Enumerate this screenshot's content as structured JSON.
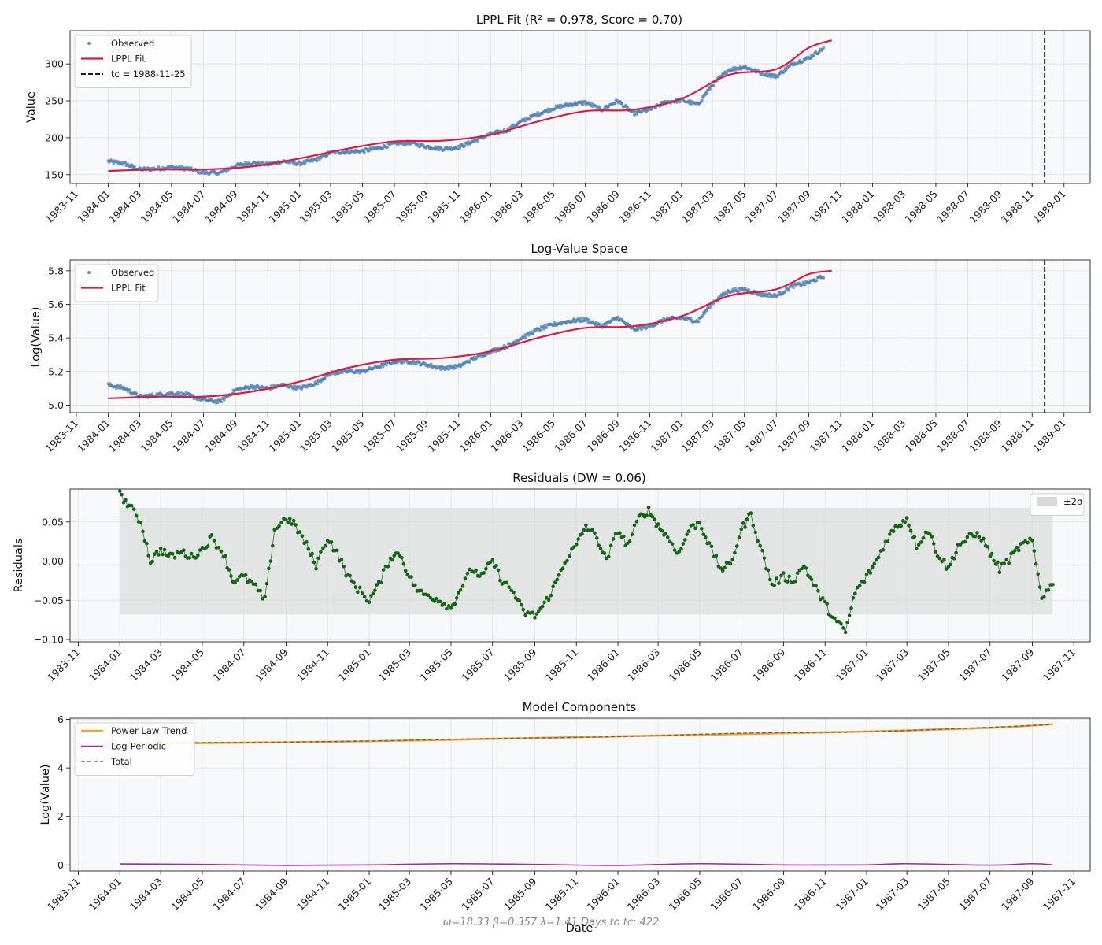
{
  "chart_data": [
    {
      "type": "scatter",
      "panel": "price",
      "title": "LPPL Fit (R² = 0.978, Score = 0.70)",
      "xlabel": "",
      "ylabel": "Value",
      "ylim": [
        138,
        345
      ],
      "yticks": [
        150,
        200,
        250,
        300
      ],
      "xlim": [
        "1983-10-20",
        "1989-02-20"
      ],
      "xticks": [
        "1983-11",
        "1984-01",
        "1984-03",
        "1984-05",
        "1984-07",
        "1984-09",
        "1984-11",
        "1985-01",
        "1985-03",
        "1985-05",
        "1985-07",
        "1985-09",
        "1985-11",
        "1986-01",
        "1986-03",
        "1986-05",
        "1986-07",
        "1986-09",
        "1986-11",
        "1987-01",
        "1987-03",
        "1987-05",
        "1987-07",
        "1987-09",
        "1987-11",
        "1988-01",
        "1988-03",
        "1988-05",
        "1988-07",
        "1988-09",
        "1988-11",
        "1989-01"
      ],
      "tc_date": "1988-11-25",
      "legend": {
        "position": "top-left",
        "entries": [
          "Observed",
          "LPPL Fit",
          "tc = 1988-11-25"
        ]
      },
      "series": [
        {
          "name": "Observed",
          "style": "dots",
          "color": "#4f81b4",
          "x": [
            "1984-01-01",
            "1984-02-01",
            "1984-03-01",
            "1984-04-01",
            "1984-05-01",
            "1984-06-01",
            "1984-07-01",
            "1984-08-01",
            "1984-09-01",
            "1984-10-01",
            "1984-11-01",
            "1984-12-01",
            "1985-01-01",
            "1985-02-01",
            "1985-03-01",
            "1985-04-01",
            "1985-05-01",
            "1985-06-01",
            "1985-07-01",
            "1985-08-01",
            "1985-09-01",
            "1985-10-01",
            "1985-11-01",
            "1985-12-01",
            "1986-01-01",
            "1986-02-01",
            "1986-03-01",
            "1986-04-01",
            "1986-05-01",
            "1986-06-01",
            "1986-07-01",
            "1986-08-01",
            "1986-09-01",
            "1986-10-01",
            "1986-11-01",
            "1986-12-01",
            "1987-01-01",
            "1987-02-01",
            "1987-03-01",
            "1987-04-01",
            "1987-05-01",
            "1987-06-01",
            "1987-07-01",
            "1987-08-01",
            "1987-09-01",
            "1987-10-01"
          ],
          "values": [
            168,
            165,
            157,
            158,
            160,
            158,
            153,
            152,
            162,
            166,
            164,
            168,
            165,
            170,
            180,
            181,
            182,
            186,
            192,
            193,
            188,
            185,
            187,
            196,
            205,
            210,
            222,
            232,
            240,
            245,
            248,
            238,
            250,
            233,
            238,
            248,
            251,
            245,
            272,
            292,
            296,
            288,
            283,
            300,
            308,
            322
          ]
        },
        {
          "name": "LPPL Fit",
          "style": "line",
          "color": "#d81c44",
          "x": [
            "1984-01-01",
            "1984-04-01",
            "1984-07-01",
            "1984-10-01",
            "1985-01-01",
            "1985-04-01",
            "1985-07-01",
            "1985-10-01",
            "1986-01-01",
            "1986-04-01",
            "1986-07-01",
            "1986-10-01",
            "1987-01-01",
            "1987-04-01",
            "1987-07-01",
            "1987-09-01",
            "1987-10-15"
          ],
          "values": [
            155,
            157,
            157,
            161,
            172,
            185,
            195,
            196,
            204,
            222,
            236,
            238,
            253,
            285,
            293,
            322,
            332
          ]
        }
      ]
    },
    {
      "type": "scatter",
      "panel": "log",
      "title": "Log-Value Space",
      "xlabel": "",
      "ylabel": "Log(Value)",
      "ylim": [
        4.955,
        5.865
      ],
      "yticks": [
        "5.0",
        "5.2",
        "5.4",
        "5.6",
        "5.8"
      ],
      "xlim": [
        "1983-10-20",
        "1989-02-20"
      ],
      "tc_date": "1988-11-25",
      "legend": {
        "position": "top-left",
        "entries": [
          "Observed",
          "LPPL Fit"
        ]
      },
      "series": [
        {
          "name": "Observed",
          "style": "dots",
          "color": "#4f81b4",
          "x": [
            "1984-01-01",
            "1984-02-01",
            "1984-03-01",
            "1984-04-01",
            "1984-05-01",
            "1984-06-01",
            "1984-07-01",
            "1984-08-01",
            "1984-09-01",
            "1984-10-01",
            "1984-11-01",
            "1984-12-01",
            "1985-01-01",
            "1985-02-01",
            "1985-03-01",
            "1985-04-01",
            "1985-05-01",
            "1985-06-01",
            "1985-07-01",
            "1985-08-01",
            "1985-09-01",
            "1985-10-01",
            "1985-11-01",
            "1985-12-01",
            "1986-01-01",
            "1986-02-01",
            "1986-03-01",
            "1986-04-01",
            "1986-05-01",
            "1986-06-01",
            "1986-07-01",
            "1986-08-01",
            "1986-09-01",
            "1986-10-01",
            "1986-11-01",
            "1986-12-01",
            "1987-01-01",
            "1987-02-01",
            "1987-03-01",
            "1987-04-01",
            "1987-05-01",
            "1987-06-01",
            "1987-07-01",
            "1987-08-01",
            "1987-09-01",
            "1987-10-01"
          ],
          "values": [
            5.12,
            5.1,
            5.05,
            5.06,
            5.07,
            5.06,
            5.03,
            5.02,
            5.09,
            5.11,
            5.1,
            5.12,
            5.1,
            5.13,
            5.19,
            5.2,
            5.2,
            5.23,
            5.26,
            5.26,
            5.24,
            5.22,
            5.23,
            5.28,
            5.32,
            5.35,
            5.4,
            5.45,
            5.48,
            5.5,
            5.51,
            5.47,
            5.52,
            5.45,
            5.47,
            5.51,
            5.52,
            5.5,
            5.61,
            5.68,
            5.69,
            5.66,
            5.65,
            5.71,
            5.73,
            5.77
          ]
        },
        {
          "name": "LPPL Fit",
          "style": "line",
          "color": "#d81c44",
          "x": [
            "1984-01-01",
            "1984-04-01",
            "1984-07-01",
            "1984-10-01",
            "1985-01-01",
            "1985-04-01",
            "1985-07-01",
            "1985-10-01",
            "1986-01-01",
            "1986-04-01",
            "1986-07-01",
            "1986-10-01",
            "1987-01-01",
            "1987-04-01",
            "1987-07-01",
            "1987-09-01",
            "1987-10-15"
          ],
          "values": [
            5.04,
            5.05,
            5.05,
            5.08,
            5.14,
            5.22,
            5.27,
            5.28,
            5.32,
            5.4,
            5.46,
            5.47,
            5.53,
            5.65,
            5.69,
            5.78,
            5.8
          ]
        }
      ]
    },
    {
      "type": "scatter",
      "panel": "residuals",
      "title": "Residuals (DW = 0.06)",
      "xlabel": "",
      "ylabel": "Residuals",
      "ylim": [
        -0.103,
        0.092
      ],
      "yticks": [
        "−0.10",
        "−0.05",
        "0.00",
        "0.05"
      ],
      "xlim": [
        "1983-10-20",
        "1987-11-25"
      ],
      "xticks": [
        "1983-11",
        "1984-01",
        "1984-03",
        "1984-05",
        "1984-07",
        "1984-09",
        "1984-11",
        "1985-01",
        "1985-03",
        "1985-05",
        "1985-07",
        "1985-09",
        "1985-11",
        "1986-01",
        "1986-03",
        "1986-05",
        "1986-07",
        "1986-09",
        "1986-11",
        "1987-01",
        "1987-03",
        "1987-05",
        "1987-07",
        "1987-09",
        "1987-11"
      ],
      "band": {
        "label": "±2σ",
        "lower": -0.068,
        "upper": 0.068
      },
      "legend": {
        "position": "top-right",
        "entries": [
          "±2σ"
        ]
      },
      "series": [
        {
          "name": "Residuals",
          "style": "line+dots",
          "color": "#146414",
          "x": [
            "1984-01-01",
            "1984-01-15",
            "1984-02-01",
            "1984-02-15",
            "1984-03-01",
            "1984-03-15",
            "1984-04-01",
            "1984-04-15",
            "1984-05-01",
            "1984-05-15",
            "1984-06-01",
            "1984-06-15",
            "1984-07-01",
            "1984-07-15",
            "1984-08-01",
            "1984-08-15",
            "1984-09-01",
            "1984-09-15",
            "1984-10-01",
            "1984-10-15",
            "1984-11-01",
            "1984-11-15",
            "1984-12-01",
            "1984-12-15",
            "1985-01-01",
            "1985-01-15",
            "1985-02-01",
            "1985-02-15",
            "1985-03-01",
            "1985-03-15",
            "1985-04-01",
            "1985-04-15",
            "1985-05-01",
            "1985-05-15",
            "1985-06-01",
            "1985-06-15",
            "1985-07-01",
            "1985-07-15",
            "1985-08-01",
            "1985-08-15",
            "1985-09-01",
            "1985-09-15",
            "1985-10-01",
            "1985-10-15",
            "1985-11-01",
            "1985-11-15",
            "1985-12-01",
            "1985-12-15",
            "1986-01-01",
            "1986-01-15",
            "1986-02-01",
            "1986-02-15",
            "1986-03-01",
            "1986-03-15",
            "1986-04-01",
            "1986-04-15",
            "1986-05-01",
            "1986-05-15",
            "1986-06-01",
            "1986-06-15",
            "1986-07-01",
            "1986-07-15",
            "1986-08-01",
            "1986-08-15",
            "1986-09-01",
            "1986-09-15",
            "1986-10-01",
            "1986-10-15",
            "1986-11-01",
            "1986-11-15",
            "1986-12-01",
            "1986-12-15",
            "1987-01-01",
            "1987-01-15",
            "1987-02-01",
            "1987-02-15",
            "1987-03-01",
            "1987-03-15",
            "1987-04-01",
            "1987-04-15",
            "1987-05-01",
            "1987-05-15",
            "1987-06-01",
            "1987-06-15",
            "1987-07-01",
            "1987-07-15",
            "1987-08-01",
            "1987-08-15",
            "1987-09-01",
            "1987-09-15",
            "1987-10-01"
          ],
          "values": [
            0.085,
            0.07,
            0.05,
            0.0,
            0.015,
            0.005,
            0.012,
            0.005,
            0.015,
            0.03,
            0.01,
            -0.025,
            -0.02,
            -0.03,
            -0.05,
            0.04,
            0.055,
            0.045,
            0.02,
            -0.005,
            0.03,
            0.01,
            -0.02,
            -0.035,
            -0.05,
            -0.03,
            0.005,
            0.01,
            -0.02,
            -0.04,
            -0.045,
            -0.05,
            -0.06,
            -0.035,
            -0.01,
            -0.02,
            0.0,
            -0.025,
            -0.04,
            -0.065,
            -0.07,
            -0.055,
            -0.03,
            0.0,
            0.02,
            0.045,
            0.03,
            0.0,
            0.04,
            0.02,
            0.055,
            0.065,
            0.045,
            0.03,
            0.01,
            0.04,
            0.05,
            0.02,
            -0.01,
            -0.005,
            0.04,
            0.06,
            0.01,
            -0.03,
            -0.02,
            -0.025,
            -0.005,
            -0.03,
            -0.055,
            -0.075,
            -0.09,
            -0.04,
            -0.02,
            0.0,
            0.03,
            0.045,
            0.055,
            0.02,
            0.04,
            0.01,
            -0.01,
            0.02,
            0.03,
            0.035,
            0.01,
            -0.01,
            0.005,
            0.02,
            0.025,
            -0.045,
            -0.03
          ]
        }
      ]
    },
    {
      "type": "line",
      "panel": "components",
      "title": "Model Components",
      "xlabel": "Date",
      "ylabel": "Log(Value)",
      "ylim": [
        -0.25,
        6.05
      ],
      "yticks": [
        "0",
        "2",
        "4",
        "6"
      ],
      "xlim": [
        "1983-10-20",
        "1987-11-25"
      ],
      "xticks": [
        "1983-11",
        "1984-01",
        "1984-03",
        "1984-05",
        "1984-07",
        "1984-09",
        "1984-11",
        "1985-01",
        "1985-03",
        "1985-05",
        "1985-07",
        "1985-09",
        "1985-11",
        "1986-01",
        "1986-03",
        "1986-05",
        "1986-07",
        "1986-09",
        "1986-11",
        "1987-01",
        "1987-03",
        "1987-05",
        "1987-07",
        "1987-09",
        "1987-11"
      ],
      "legend": {
        "position": "top-left",
        "entries": [
          "Power Law Trend",
          "Log-Periodic",
          "Total"
        ]
      },
      "series": [
        {
          "name": "Power Law Trend",
          "color": "#f5a623",
          "x": [
            "1984-01-01",
            "1984-07-01",
            "1985-01-01",
            "1985-07-01",
            "1986-01-01",
            "1986-07-01",
            "1987-01-01",
            "1987-07-01",
            "1987-10-01"
          ],
          "values": [
            5.0,
            5.04,
            5.1,
            5.2,
            5.3,
            5.4,
            5.5,
            5.65,
            5.8
          ]
        },
        {
          "name": "Log-Periodic",
          "color": "#9b2c9b",
          "x": [
            "1984-01-01",
            "1984-05-01",
            "1984-09-01",
            "1985-01-01",
            "1985-05-01",
            "1985-09-01",
            "1986-01-01",
            "1986-05-01",
            "1986-09-01",
            "1987-01-01",
            "1987-03-01",
            "1987-07-01",
            "1987-09-01",
            "1987-10-01"
          ],
          "values": [
            0.04,
            0.02,
            -0.02,
            0.0,
            0.05,
            0.02,
            -0.02,
            0.05,
            0.0,
            0.0,
            0.05,
            -0.01,
            0.05,
            0.0
          ]
        },
        {
          "name": "Total",
          "color": "#666666",
          "x": [
            "1984-01-01",
            "1984-07-01",
            "1985-01-01",
            "1985-07-01",
            "1986-01-01",
            "1986-07-01",
            "1987-01-01",
            "1987-07-01",
            "1987-10-01"
          ],
          "values": [
            5.04,
            5.05,
            5.11,
            5.21,
            5.29,
            5.43,
            5.49,
            5.67,
            5.79
          ]
        }
      ]
    }
  ],
  "footer": {
    "text": "ω=18.33  β=0.357  λ=1.41  Days to tc: 422"
  }
}
